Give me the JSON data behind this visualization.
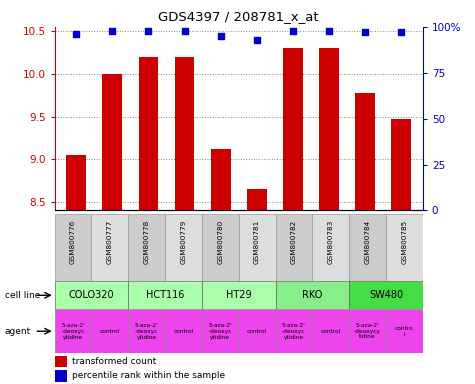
{
  "title": "GDS4397 / 208781_x_at",
  "samples": [
    "GSM800776",
    "GSM800777",
    "GSM800778",
    "GSM800779",
    "GSM800780",
    "GSM800781",
    "GSM800782",
    "GSM800783",
    "GSM800784",
    "GSM800785"
  ],
  "transformed_count": [
    9.05,
    10.0,
    10.2,
    10.2,
    9.12,
    8.65,
    10.3,
    10.3,
    9.78,
    9.47
  ],
  "percentile_rank": [
    96,
    98,
    98,
    98,
    95,
    93,
    98,
    98,
    97,
    97
  ],
  "bar_color": "#cc0000",
  "dot_color": "#0000cc",
  "ylim_left": [
    8.4,
    10.55
  ],
  "ylim_right": [
    0,
    100
  ],
  "yticks_left": [
    8.5,
    9.0,
    9.5,
    10.0,
    10.5
  ],
  "yticks_right": [
    0,
    25,
    50,
    75,
    100
  ],
  "ytick_labels_right": [
    "0",
    "25",
    "50",
    "75",
    "100%"
  ],
  "cell_lines": [
    {
      "name": "COLO320",
      "start": 0,
      "end": 2,
      "color": "#aaffaa"
    },
    {
      "name": "HCT116",
      "start": 2,
      "end": 4,
      "color": "#aaffaa"
    },
    {
      "name": "HT29",
      "start": 4,
      "end": 6,
      "color": "#aaffaa"
    },
    {
      "name": "RKO",
      "start": 6,
      "end": 8,
      "color": "#88ee88"
    },
    {
      "name": "SW480",
      "start": 8,
      "end": 10,
      "color": "#44dd44"
    }
  ],
  "agents": [
    {
      "name": "5-aza-2'\n-deoxyc\nytidine",
      "col": 0,
      "color": "#ee44ee"
    },
    {
      "name": "control",
      "col": 1,
      "color": "#ee44ee"
    },
    {
      "name": "5-aza-2'\n-deoxyc\nytidine",
      "col": 2,
      "color": "#ee44ee"
    },
    {
      "name": "control",
      "col": 3,
      "color": "#ee44ee"
    },
    {
      "name": "5-aza-2'\n-deoxyc\nytidine",
      "col": 4,
      "color": "#ee44ee"
    },
    {
      "name": "control",
      "col": 5,
      "color": "#ee44ee"
    },
    {
      "name": "5-aza-2'\n-deoxyc\nytidine",
      "col": 6,
      "color": "#ee44ee"
    },
    {
      "name": "control",
      "col": 7,
      "color": "#ee44ee"
    },
    {
      "name": "5-aza-2'\n-deoxycy\ntidine",
      "col": 8,
      "color": "#ee44ee"
    },
    {
      "name": "contro\nl",
      "col": 9,
      "color": "#ee44ee"
    }
  ],
  "grid_color": "#888888",
  "tick_color_left": "#cc0000",
  "tick_color_right": "#0000cc",
  "bar_width": 0.55,
  "label_cell_color_even": "#cccccc",
  "label_cell_color_odd": "#dddddd"
}
